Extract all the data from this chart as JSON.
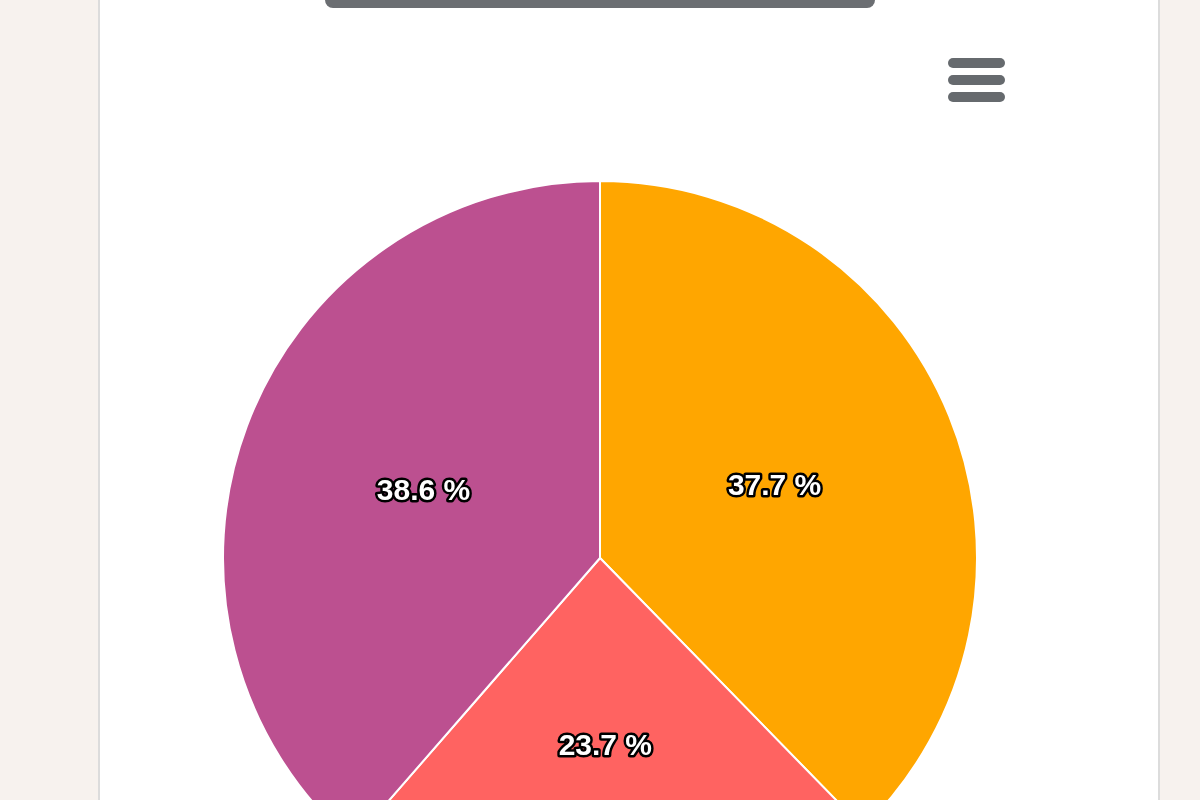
{
  "chart_data": {
    "type": "pie",
    "categories": [
      null,
      null,
      null
    ],
    "values": [
      37.7,
      23.7,
      38.6
    ],
    "colors": [
      "#ffa600",
      "#ff6361",
      "#bc5090"
    ],
    "value_labels": [
      "37.7 %",
      "23.7 %",
      "38.6 %"
    ],
    "legend": false
  }
}
